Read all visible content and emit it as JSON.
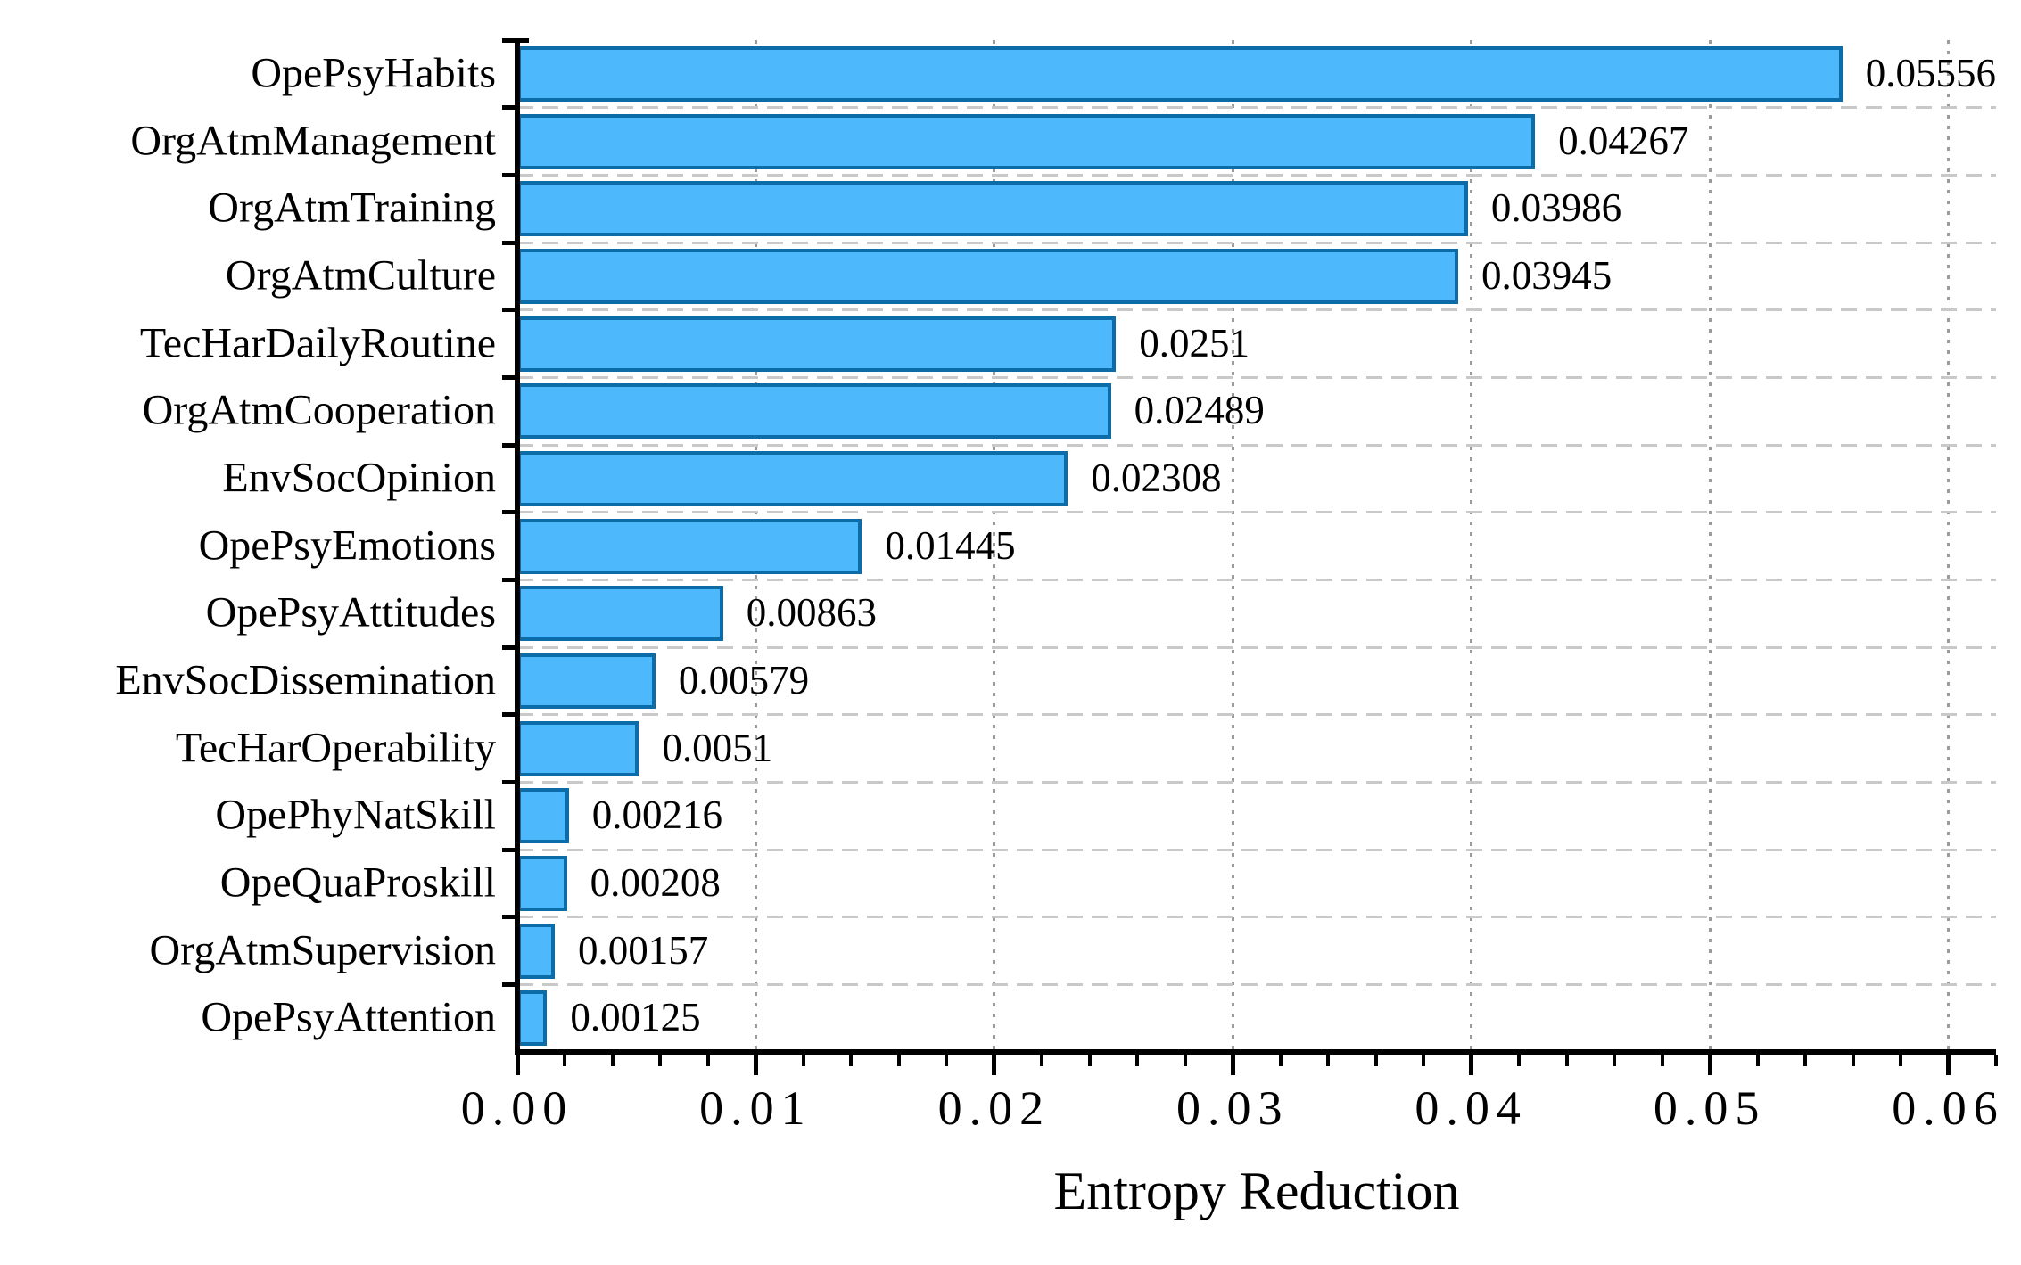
{
  "chart_data": {
    "type": "bar",
    "orientation": "horizontal",
    "title": "",
    "xlabel": "Entropy Reduction",
    "ylabel": "",
    "categories": [
      "OpePsyHabits",
      "OrgAtmManagement",
      "OrgAtmTraining",
      "OrgAtmCulture",
      "TecHarDailyRoutine",
      "OrgAtmCooperation",
      "EnvSocOpinion",
      "OpePsyEmotions",
      "OpePsyAttitudes",
      "EnvSocDissemination",
      "TecHarOperability",
      "OpePhyNatSkill",
      "OpeQuaProskill",
      "OrgAtmSupervision",
      "OpePsyAttention"
    ],
    "values": [
      0.05556,
      0.04267,
      0.03986,
      0.03945,
      0.0251,
      0.02489,
      0.02308,
      0.01445,
      0.00863,
      0.00579,
      0.0051,
      0.00216,
      0.00208,
      0.00157,
      0.00125
    ],
    "value_labels": [
      "0.05556",
      "0.04267",
      "0.03986",
      "0.03945",
      "0.0251",
      "0.02489",
      "0.02308",
      "0.01445",
      "0.00863",
      "0.00579",
      "0.0051",
      "0.00216",
      "0.00208",
      "0.00157",
      "0.00125"
    ],
    "x_tick_labels": [
      "0.00",
      "0.01",
      "0.02",
      "0.03",
      "0.04",
      "0.05",
      "0.06"
    ],
    "x_major_step": 0.01,
    "x_minor_step": 0.002,
    "xlim": [
      0,
      0.062
    ],
    "grid": {
      "horizontal": "dashed-light-gray",
      "vertical": "dotted-gray"
    },
    "legend": "none",
    "colors": {
      "bar_fill": "#4db9fc",
      "bar_border": "#0c6ca8",
      "h_grid": "#c9c9c9",
      "v_grid": "#9b9b9b",
      "axis": "#000000",
      "text": "#000000"
    }
  }
}
